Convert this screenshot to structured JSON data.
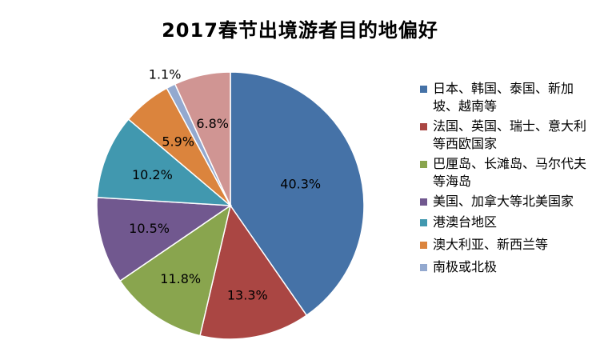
{
  "chart_data": {
    "type": "pie",
    "title": "2017春节出境游者目的地偏好",
    "slices": [
      {
        "label": "日本、韩国、泰国、新加坡、越南等",
        "value": 40.3,
        "display": "40.3%",
        "color": "#4572A7"
      },
      {
        "label": "法国、英国、瑞士、意大利等西欧国家",
        "value": 13.3,
        "display": "13.3%",
        "color": "#AA4643"
      },
      {
        "label": "巴厘岛、长滩岛、马尔代夫等海岛",
        "value": 11.8,
        "display": "11.8%",
        "color": "#89A54E"
      },
      {
        "label": "美国、加拿大等北美国家",
        "value": 10.5,
        "display": "10.5%",
        "color": "#71588F"
      },
      {
        "label": "港澳台地区",
        "value": 10.2,
        "display": "10.2%",
        "color": "#4198AF"
      },
      {
        "label": "澳大利亚、新西兰等",
        "value": 5.9,
        "display": "5.9%",
        "color": "#DB843D"
      },
      {
        "label": "南极或北极",
        "value": 1.1,
        "display": "1.1%",
        "color": "#93A9CF"
      },
      {
        "label": "",
        "value": 6.8,
        "display": "6.8%",
        "color": "#D09593"
      }
    ],
    "legend_position": "right"
  }
}
